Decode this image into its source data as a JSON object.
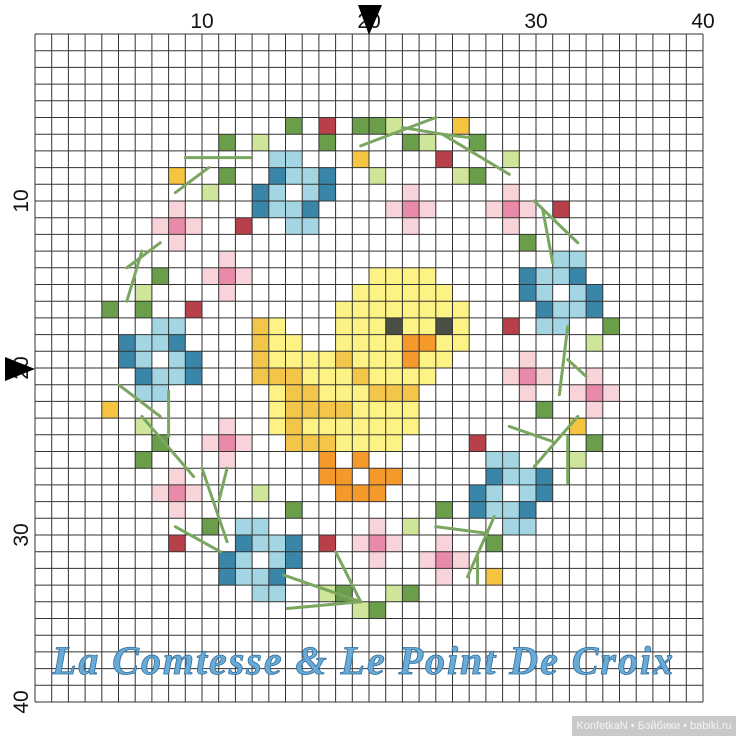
{
  "axis": {
    "top_labels": [
      "10",
      "20",
      "30",
      "40"
    ],
    "left_labels": [
      "10",
      "20",
      "30",
      "40"
    ],
    "grid_size": 40,
    "center_marker": 20
  },
  "watermark": "La Comtesse & Le Point De Croix",
  "credit": "KonfetkaN • Бэйбики • babiki.ru",
  "colors": {
    "dark_green": "#6a9e4a",
    "light_green": "#cfe59a",
    "red": "#b8404a",
    "gold": "#f5c542",
    "dark_blue": "#3a86a8",
    "light_blue": "#a3d5e3",
    "pink_light": "#f9d3da",
    "pink_mid": "#e98aaa",
    "yellow": "#fcf384",
    "yellow_orange": "#f3c64a",
    "orange": "#f59a2a",
    "dark_gray": "#4a4f44",
    "backstitch": "#7aa660",
    "grid": "#333333"
  },
  "pattern": {
    "cells": {
      "red": [
        [
          17,
          5
        ],
        [
          24,
          7
        ],
        [
          12,
          11
        ],
        [
          31,
          10
        ],
        [
          9,
          16
        ],
        [
          28,
          17
        ],
        [
          26,
          24
        ],
        [
          8,
          30
        ],
        [
          17,
          30
        ]
      ],
      "dark_green": [
        [
          15,
          5
        ],
        [
          19,
          5
        ],
        [
          20,
          5
        ],
        [
          11,
          6
        ],
        [
          17,
          6
        ],
        [
          22,
          6
        ],
        [
          26,
          6
        ],
        [
          11,
          8
        ],
        [
          26,
          8
        ],
        [
          29,
          12
        ],
        [
          7,
          14
        ],
        [
          4,
          16
        ],
        [
          6,
          16
        ],
        [
          34,
          17
        ],
        [
          30,
          22
        ],
        [
          33,
          24
        ],
        [
          7,
          24
        ],
        [
          6,
          25
        ],
        [
          15,
          28
        ],
        [
          24,
          28
        ],
        [
          10,
          29
        ],
        [
          27,
          30
        ],
        [
          18,
          33
        ],
        [
          22,
          33
        ],
        [
          20,
          34
        ]
      ],
      "light_green": [
        [
          13,
          6
        ],
        [
          21,
          5
        ],
        [
          23,
          6
        ],
        [
          10,
          9
        ],
        [
          28,
          7
        ],
        [
          20,
          8
        ],
        [
          25,
          8
        ],
        [
          6,
          15
        ],
        [
          6,
          23
        ],
        [
          33,
          18
        ],
        [
          32,
          25
        ],
        [
          13,
          27
        ],
        [
          22,
          29
        ],
        [
          17,
          33
        ],
        [
          19,
          34
        ],
        [
          21,
          33
        ]
      ],
      "gold": [
        [
          19,
          7
        ],
        [
          8,
          8
        ],
        [
          25,
          5
        ],
        [
          4,
          22
        ],
        [
          32,
          23
        ],
        [
          27,
          32
        ]
      ],
      "dark_blue": [
        [
          14,
          8
        ],
        [
          17,
          8
        ],
        [
          13,
          9
        ],
        [
          17,
          9
        ],
        [
          13,
          10
        ],
        [
          16,
          10
        ],
        [
          5,
          18
        ],
        [
          8,
          18
        ],
        [
          5,
          19
        ],
        [
          9,
          19
        ],
        [
          6,
          20
        ],
        [
          9,
          20
        ],
        [
          12,
          30
        ],
        [
          15,
          30
        ],
        [
          11,
          31
        ],
        [
          15,
          31
        ],
        [
          11,
          32
        ],
        [
          14,
          32
        ],
        [
          27,
          26
        ],
        [
          30,
          26
        ],
        [
          26,
          27
        ],
        [
          30,
          27
        ],
        [
          26,
          28
        ],
        [
          29,
          28
        ],
        [
          29,
          14
        ],
        [
          32,
          14
        ],
        [
          29,
          15
        ],
        [
          33,
          15
        ],
        [
          30,
          16
        ],
        [
          33,
          16
        ]
      ],
      "light_blue": [
        [
          14,
          7
        ],
        [
          15,
          7
        ],
        [
          15,
          8
        ],
        [
          16,
          8
        ],
        [
          14,
          9
        ],
        [
          16,
          9
        ],
        [
          14,
          10
        ],
        [
          15,
          10
        ],
        [
          15,
          11
        ],
        [
          16,
          11
        ],
        [
          7,
          17
        ],
        [
          8,
          17
        ],
        [
          6,
          18
        ],
        [
          7,
          18
        ],
        [
          6,
          19
        ],
        [
          8,
          19
        ],
        [
          7,
          20
        ],
        [
          8,
          20
        ],
        [
          6,
          21
        ],
        [
          7,
          21
        ],
        [
          12,
          29
        ],
        [
          13,
          29
        ],
        [
          13,
          30
        ],
        [
          14,
          30
        ],
        [
          12,
          31
        ],
        [
          14,
          31
        ],
        [
          12,
          32
        ],
        [
          13,
          32
        ],
        [
          13,
          33
        ],
        [
          14,
          33
        ],
        [
          27,
          25
        ],
        [
          28,
          25
        ],
        [
          28,
          26
        ],
        [
          29,
          26
        ],
        [
          27,
          27
        ],
        [
          29,
          27
        ],
        [
          27,
          28
        ],
        [
          28,
          28
        ],
        [
          28,
          29
        ],
        [
          29,
          29
        ],
        [
          31,
          13
        ],
        [
          32,
          13
        ],
        [
          30,
          14
        ],
        [
          31,
          14
        ],
        [
          30,
          15
        ],
        [
          32,
          15
        ],
        [
          31,
          16
        ],
        [
          32,
          16
        ],
        [
          30,
          17
        ],
        [
          31,
          17
        ]
      ],
      "pink_mid": [
        [
          8,
          11
        ],
        [
          11,
          14
        ],
        [
          22,
          10
        ],
        [
          28,
          10
        ],
        [
          29,
          20
        ],
        [
          33,
          21
        ],
        [
          11,
          24
        ],
        [
          8,
          27
        ],
        [
          20,
          30
        ],
        [
          24,
          31
        ]
      ],
      "pink_light": [
        [
          8,
          10
        ],
        [
          7,
          11
        ],
        [
          9,
          11
        ],
        [
          8,
          12
        ],
        [
          11,
          13
        ],
        [
          10,
          14
        ],
        [
          12,
          14
        ],
        [
          11,
          15
        ],
        [
          22,
          9
        ],
        [
          21,
          10
        ],
        [
          23,
          10
        ],
        [
          22,
          11
        ],
        [
          28,
          9
        ],
        [
          27,
          10
        ],
        [
          29,
          10
        ],
        [
          28,
          11
        ],
        [
          29,
          19
        ],
        [
          28,
          20
        ],
        [
          30,
          20
        ],
        [
          29,
          21
        ],
        [
          33,
          20
        ],
        [
          32,
          21
        ],
        [
          34,
          21
        ],
        [
          33,
          22
        ],
        [
          11,
          23
        ],
        [
          10,
          24
        ],
        [
          12,
          24
        ],
        [
          11,
          25
        ],
        [
          8,
          26
        ],
        [
          7,
          27
        ],
        [
          9,
          27
        ],
        [
          8,
          28
        ],
        [
          20,
          29
        ],
        [
          19,
          30
        ],
        [
          21,
          30
        ],
        [
          20,
          31
        ],
        [
          24,
          30
        ],
        [
          23,
          31
        ],
        [
          25,
          31
        ],
        [
          24,
          32
        ]
      ],
      "yellow_orange": [
        [
          13,
          17
        ],
        [
          13,
          18
        ],
        [
          13,
          19
        ],
        [
          18,
          19
        ],
        [
          13,
          20
        ],
        [
          14,
          20
        ],
        [
          15,
          20
        ],
        [
          19,
          20
        ],
        [
          15,
          21
        ],
        [
          16,
          21
        ],
        [
          20,
          21
        ],
        [
          21,
          21
        ],
        [
          22,
          21
        ],
        [
          15,
          22
        ],
        [
          16,
          22
        ],
        [
          17,
          22
        ],
        [
          18,
          22
        ],
        [
          15,
          23
        ],
        [
          15,
          24
        ],
        [
          16,
          24
        ],
        [
          17,
          24
        ]
      ],
      "orange": [
        [
          22,
          18
        ],
        [
          23,
          18
        ],
        [
          22,
          19
        ],
        [
          17,
          25
        ],
        [
          19,
          25
        ],
        [
          17,
          26
        ],
        [
          18,
          26
        ],
        [
          20,
          26
        ],
        [
          21,
          26
        ],
        [
          18,
          27
        ],
        [
          19,
          27
        ],
        [
          20,
          27
        ]
      ],
      "dark_gray": [
        [
          21,
          17
        ],
        [
          24,
          17
        ]
      ]
    },
    "yellow_runs": [
      [
        14,
        20,
        23
      ],
      [
        15,
        19,
        24
      ],
      [
        16,
        18,
        25
      ],
      [
        17,
        14,
        14
      ],
      [
        17,
        18,
        20
      ],
      [
        17,
        22,
        23
      ],
      [
        17,
        25,
        25
      ],
      [
        18,
        14,
        15
      ],
      [
        18,
        18,
        21
      ],
      [
        18,
        24,
        25
      ],
      [
        19,
        14,
        17
      ],
      [
        19,
        19,
        21
      ],
      [
        19,
        23,
        24
      ],
      [
        20,
        16,
        18
      ],
      [
        20,
        20,
        23
      ],
      [
        21,
        14,
        14
      ],
      [
        21,
        17,
        19
      ],
      [
        22,
        14,
        14
      ],
      [
        22,
        19,
        22
      ],
      [
        23,
        14,
        14
      ],
      [
        23,
        16,
        22
      ],
      [
        24,
        18,
        21
      ]
    ],
    "backstitch": [
      [
        [
          9.0,
          7.4
        ],
        [
          12.9,
          7.4
        ]
      ],
      [
        [
          10.4,
          8.0
        ],
        [
          8.4,
          9.5
        ]
      ],
      [
        [
          7.5,
          12.5
        ],
        [
          5.5,
          14.0
        ]
      ],
      [
        [
          6.4,
          13.0
        ],
        [
          5.5,
          16.0
        ]
      ],
      [
        [
          19.5,
          6.7
        ],
        [
          24.0,
          5.0
        ]
      ],
      [
        [
          22.0,
          5.6
        ],
        [
          24.4,
          6.0
        ]
      ],
      [
        [
          24.4,
          6.0
        ],
        [
          28.4,
          8.4
        ]
      ],
      [
        [
          24.4,
          6.0
        ],
        [
          26.0,
          6.2
        ]
      ],
      [
        [
          29.9,
          10.0
        ],
        [
          32.5,
          12.5
        ]
      ],
      [
        [
          30.4,
          10.5
        ],
        [
          31.0,
          13.7
        ]
      ],
      [
        [
          31.9,
          17.5
        ],
        [
          31.4,
          21.6
        ]
      ],
      [
        [
          31.9,
          19.5
        ],
        [
          33.0,
          20.5
        ]
      ],
      [
        [
          28.4,
          23.5
        ],
        [
          31.0,
          24.4
        ]
      ],
      [
        [
          32.5,
          22.9
        ],
        [
          29.9,
          25.9
        ]
      ],
      [
        [
          31.9,
          24.1
        ],
        [
          31.9,
          26.9
        ]
      ],
      [
        [
          5.0,
          21.0
        ],
        [
          7.5,
          22.9
        ]
      ],
      [
        [
          8.0,
          21.4
        ],
        [
          8.0,
          24.1
        ]
      ],
      [
        [
          6.4,
          22.9
        ],
        [
          9.5,
          26.5
        ]
      ],
      [
        [
          10.0,
          26.0
        ],
        [
          11.5,
          30.4
        ]
      ],
      [
        [
          11.5,
          26.0
        ],
        [
          11.0,
          28.0
        ]
      ],
      [
        [
          8.4,
          29.5
        ],
        [
          11.1,
          31.0
        ]
      ],
      [
        [
          14.9,
          32.4
        ],
        [
          19.5,
          34.0
        ]
      ],
      [
        [
          15.1,
          34.4
        ],
        [
          19.5,
          34.0
        ]
      ],
      [
        [
          18.0,
          31.0
        ],
        [
          19.5,
          34.0
        ]
      ],
      [
        [
          24.0,
          29.5
        ],
        [
          27.1,
          29.9
        ]
      ],
      [
        [
          27.5,
          28.9
        ],
        [
          25.9,
          32.5
        ]
      ],
      [
        [
          26.5,
          31.3
        ],
        [
          26.5,
          32.9
        ]
      ]
    ]
  }
}
